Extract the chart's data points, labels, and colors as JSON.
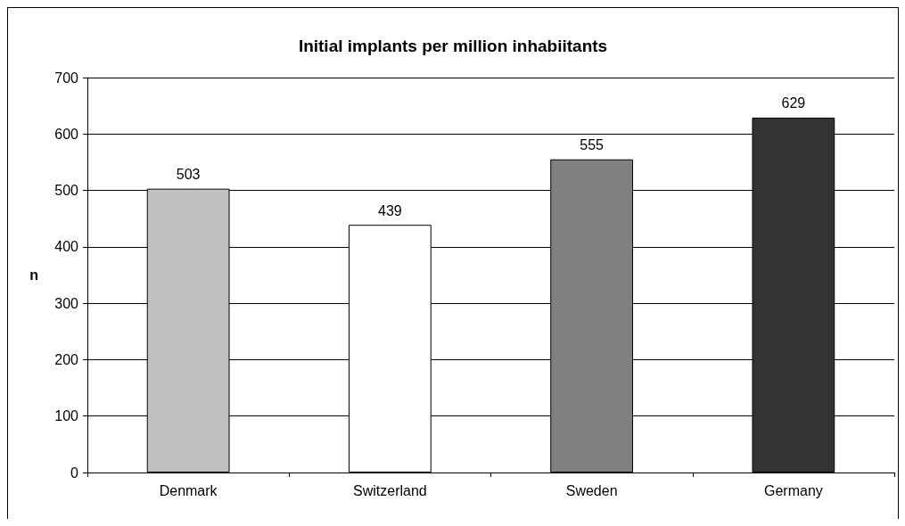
{
  "chart_data": {
    "type": "bar",
    "title": "Initial implants per million inhabiitants",
    "ylabel": "n",
    "categories": [
      "Denmark",
      "Switzerland",
      "Sweden",
      "Germany"
    ],
    "values": [
      503,
      439,
      555,
      629
    ],
    "colors": [
      "#c0c0c0",
      "#ffffff",
      "#808080",
      "#333333"
    ],
    "ylim": [
      0,
      700
    ],
    "yticks": [
      0,
      100,
      200,
      300,
      400,
      500,
      600,
      700
    ],
    "grid": "y",
    "data_labels": true
  }
}
